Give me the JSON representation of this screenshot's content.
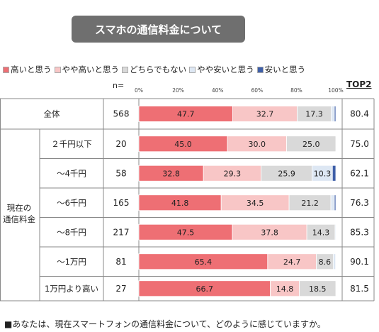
{
  "title": "スマホの通信料金について",
  "n_label": "n=",
  "top2_label": "TOP2",
  "group_label": "現在の\n通信料金",
  "footnote": "■あなたは、現在スマートフォンの通信料金について、どのように感じていますか。",
  "colors": {
    "高いと思う": "#ee6f74",
    "やや高いと思う": "#f8c6c6",
    "どちらでもない": "#d9d9d9",
    "やや安いと思う": "#dde7f3",
    "安いと思う": "#3e5fa8"
  },
  "chart_data": {
    "type": "bar",
    "orientation": "horizontal",
    "stacked": true,
    "xlim": [
      0,
      100
    ],
    "x_ticks": [
      "0%",
      "20%",
      "40%",
      "60%",
      "80%",
      "100%"
    ],
    "legend_position": "top",
    "categories": [
      "全体",
      "２千円以下",
      "～4千円",
      "～6千円",
      "～8千円",
      "～1万円",
      "1万円より高い"
    ],
    "n": [
      568,
      20,
      58,
      165,
      217,
      81,
      27
    ],
    "top2": [
      80.4,
      75.0,
      62.1,
      76.3,
      85.3,
      90.1,
      81.5
    ],
    "series": [
      {
        "name": "高いと思う",
        "values": [
          47.7,
          45.0,
          32.8,
          41.8,
          47.5,
          65.4,
          66.7
        ],
        "labels": [
          "47.7",
          "45.0",
          "32.8",
          "41.8",
          "47.5",
          "65.4",
          "66.7"
        ]
      },
      {
        "name": "やや高いと思う",
        "values": [
          32.7,
          30.0,
          29.3,
          34.5,
          37.8,
          24.7,
          14.8
        ],
        "labels": [
          "32.7",
          "30.0",
          "29.3",
          "34.5",
          "37.8",
          "24.7",
          "14.8"
        ]
      },
      {
        "name": "どちらでもない",
        "values": [
          17.3,
          25.0,
          25.9,
          21.2,
          14.3,
          8.6,
          18.5
        ],
        "labels": [
          "17.3",
          "25.0",
          "25.9",
          "21.2",
          "14.3",
          "8.6",
          "18.5"
        ]
      },
      {
        "name": "やや安いと思う",
        "values": [
          1.6,
          0,
          10.3,
          1.8,
          0.4,
          1.2,
          0
        ],
        "labels": [
          "",
          "",
          "10.3",
          "",
          "",
          "",
          ""
        ]
      },
      {
        "name": "安いと思う",
        "values": [
          0.7,
          0,
          1.7,
          0.7,
          0,
          0,
          0
        ],
        "labels": [
          "",
          "",
          "",
          "",
          "",
          "",
          ""
        ]
      }
    ]
  }
}
